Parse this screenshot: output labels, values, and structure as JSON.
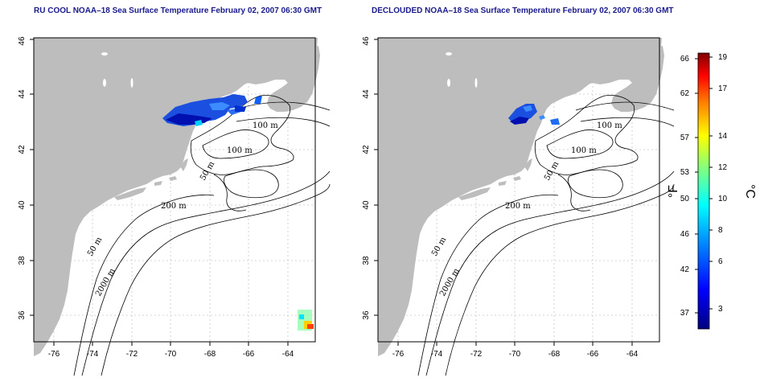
{
  "panels": [
    {
      "title": "RU COOL NOAA–18 Sea Surface Temperature February 02, 2007 06:30 GMT",
      "x_ticks": [
        "-76",
        "-74",
        "-72",
        "-70",
        "-68",
        "-66",
        "-64"
      ],
      "y_ticks": [
        "36",
        "38",
        "40",
        "42",
        "44",
        "46"
      ],
      "contour_labels": [
        "100 m",
        "100 m",
        "50 m",
        "200 m",
        "50 m",
        "2000 m"
      ]
    },
    {
      "title": "DECLOUDED NOAA–18 Sea Surface Temperature February 02, 2007 06:30 GMT",
      "x_ticks": [
        "-76",
        "-74",
        "-72",
        "-70",
        "-68",
        "-66",
        "-64"
      ],
      "y_ticks": [
        "36",
        "38",
        "40",
        "42",
        "44",
        "46"
      ],
      "contour_labels": [
        "100 m",
        "100 m",
        "50 m",
        "200 m",
        "50 m",
        "2000 m"
      ]
    }
  ],
  "colorbar": {
    "fahrenheit_ticks": [
      "66",
      "62",
      "57",
      "53",
      "50",
      "46",
      "42",
      "37"
    ],
    "celsius_ticks": [
      "19",
      "17",
      "14",
      "12",
      "10",
      "8",
      "6",
      "3"
    ],
    "fahrenheit_unit": "°F",
    "celsius_unit": "°C",
    "colors": [
      "#000080",
      "#0000ff",
      "#0080ff",
      "#00ffff",
      "#80ff80",
      "#ffff00",
      "#ff8000",
      "#ff0000",
      "#800000"
    ]
  },
  "colors": {
    "land": "#bdbdbd",
    "title": "#1a1a8c",
    "grid": "#c8c8c8"
  }
}
